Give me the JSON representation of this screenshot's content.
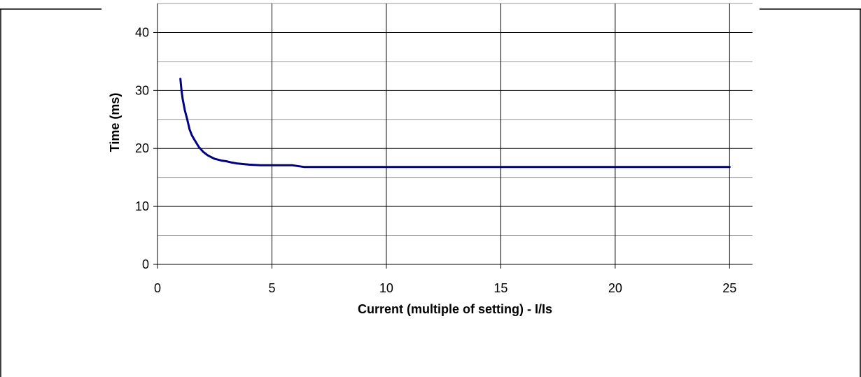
{
  "chart_data": {
    "type": "line",
    "title": "",
    "xlabel": "Current (multiple of setting) - I/Is",
    "ylabel": "Time (ms)",
    "xlim": [
      0,
      26
    ],
    "ylim": [
      0,
      45
    ],
    "x_ticks": [
      0,
      5,
      10,
      15,
      20,
      25
    ],
    "y_ticks": [
      0,
      10,
      20,
      30,
      40
    ],
    "x_tick_labels": [
      "0",
      "5",
      "10",
      "15",
      "20",
      "25"
    ],
    "y_tick_labels": [
      "0",
      "10",
      "20",
      "30",
      "40"
    ],
    "grid": true,
    "legend": "none",
    "series": [
      {
        "color": "#000080",
        "x": [
          1.0,
          1.05,
          1.1,
          1.2,
          1.3,
          1.4,
          1.5,
          1.6,
          1.8,
          2.0,
          2.2,
          2.5,
          2.8,
          3.0,
          3.2,
          3.5,
          4.0,
          4.5,
          5.0,
          5.5,
          5.9,
          6.4,
          8.0,
          10.0,
          15.0,
          20.0,
          25.0
        ],
        "y": [
          32.0,
          30.0,
          28.5,
          26.5,
          25.0,
          23.3,
          22.3,
          21.6,
          20.3,
          19.4,
          18.8,
          18.2,
          17.9,
          17.8,
          17.6,
          17.4,
          17.2,
          17.1,
          17.1,
          17.1,
          17.1,
          16.8,
          16.8,
          16.8,
          16.8,
          16.8,
          16.8
        ]
      }
    ]
  }
}
